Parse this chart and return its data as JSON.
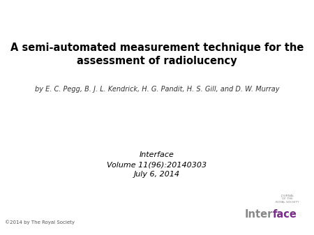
{
  "title_line1": "A semi-automated measurement technique for the",
  "title_line2": "assessment of radiolucency",
  "authors": "by E. C. Pegg, B. J. L. Kendrick, H. G. Pandit, H. S. Gill, and D. W. Murray",
  "journal": "Interface",
  "volume": "Volume 11(96):20140303",
  "date": "July 6, 2014",
  "copyright": "©2014 by The Royal Society",
  "logo_text_inter": "Inter",
  "logo_text_face": "face",
  "logo_small_text": "JOURNAL\nOF THE\nROYAL SOCIETY",
  "background_color": "#ffffff",
  "title_color": "#000000",
  "authors_color": "#333333",
  "journal_color": "#000000",
  "logo_purple": "#7B2D8B",
  "logo_gray": "#888888",
  "copyright_color": "#555555"
}
